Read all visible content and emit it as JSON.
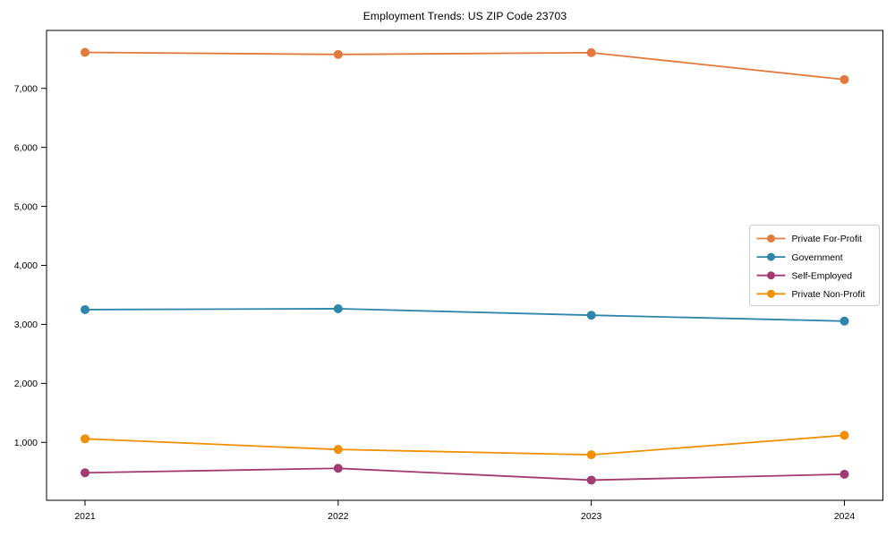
{
  "chart_data": {
    "type": "line",
    "title": "Employment Trends: US ZIP Code 23703",
    "x": [
      "2021",
      "2022",
      "2023",
      "2024"
    ],
    "series": [
      {
        "name": "Private For-Profit",
        "color": "#E27A3E",
        "values": [
          7610,
          7575,
          7605,
          7150
        ]
      },
      {
        "name": "Government",
        "color": "#2E86AB",
        "values": [
          3250,
          3265,
          3155,
          3055
        ]
      },
      {
        "name": "Self-Employed",
        "color": "#A23B72",
        "values": [
          485,
          560,
          360,
          460
        ]
      },
      {
        "name": "Private Non-Profit",
        "color": "#F18F01",
        "values": [
          1060,
          880,
          790,
          1120
        ]
      }
    ],
    "yticks": [
      1000,
      2000,
      3000,
      4000,
      5000,
      6000,
      7000
    ],
    "ytick_labels": [
      "1,000",
      "2,000",
      "3,000",
      "4,000",
      "5,000",
      "6,000",
      "7,000"
    ],
    "ylim": [
      18,
      7982
    ],
    "xlabel": "",
    "ylabel": "",
    "grid": false,
    "legend_position": "right-center",
    "axis_color": "#000000",
    "legend_border_color": "#cccccc",
    "legend_background": "#ffffff"
  }
}
